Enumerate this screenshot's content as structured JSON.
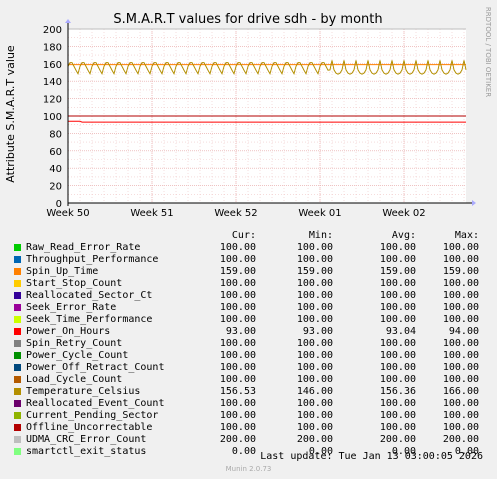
{
  "title": "S.M.A.R.T values for drive sdh - by month",
  "side_label": "RRDTOOL / TOBI OETIKER",
  "footer_version": "Munin 2.0.73",
  "last_update": "Last update: Tue Jan 13 03:00:05 2026",
  "headers": {
    "cur": "Cur:",
    "min": "Min:",
    "avg": "Avg:",
    "max": "Max:"
  },
  "chart_data": {
    "type": "line",
    "title": "S.M.A.R.T values for drive sdh - by month",
    "xlabel": "",
    "ylabel": "Attribute S.M.A.R.T value",
    "ylim": [
      0,
      200
    ],
    "yticks": [
      0,
      20,
      40,
      60,
      80,
      100,
      120,
      140,
      160,
      180,
      200
    ],
    "xticks": [
      "Week 50",
      "Week 51",
      "Week 52",
      "Week 01",
      "Week 02"
    ],
    "grid": true,
    "series": [
      {
        "name": "Raw_Read_Error_Rate",
        "color": "#00cc00",
        "cur": "100.00",
        "min": "100.00",
        "avg": "100.00",
        "max": "100.00"
      },
      {
        "name": "Throughput_Performance",
        "color": "#0066b3",
        "cur": "100.00",
        "min": "100.00",
        "avg": "100.00",
        "max": "100.00"
      },
      {
        "name": "Spin_Up_Time",
        "color": "#ff8000",
        "cur": "159.00",
        "min": "159.00",
        "avg": "159.00",
        "max": "159.00"
      },
      {
        "name": "Start_Stop_Count",
        "color": "#ffcc00",
        "cur": "100.00",
        "min": "100.00",
        "avg": "100.00",
        "max": "100.00"
      },
      {
        "name": "Reallocated_Sector_Ct",
        "color": "#330099",
        "cur": "100.00",
        "min": "100.00",
        "avg": "100.00",
        "max": "100.00"
      },
      {
        "name": "Seek_Error_Rate",
        "color": "#990099",
        "cur": "100.00",
        "min": "100.00",
        "avg": "100.00",
        "max": "100.00"
      },
      {
        "name": "Seek_Time_Performance",
        "color": "#ccff00",
        "cur": "100.00",
        "min": "100.00",
        "avg": "100.00",
        "max": "100.00"
      },
      {
        "name": "Power_On_Hours",
        "color": "#ff0000",
        "cur": "93.00",
        "min": "93.00",
        "avg": "93.04",
        "max": "94.00"
      },
      {
        "name": "Spin_Retry_Count",
        "color": "#808080",
        "cur": "100.00",
        "min": "100.00",
        "avg": "100.00",
        "max": "100.00"
      },
      {
        "name": "Power_Cycle_Count",
        "color": "#008f00",
        "cur": "100.00",
        "min": "100.00",
        "avg": "100.00",
        "max": "100.00"
      },
      {
        "name": "Power_Off_Retract_Count",
        "color": "#00487d",
        "cur": "100.00",
        "min": "100.00",
        "avg": "100.00",
        "max": "100.00"
      },
      {
        "name": "Load_Cycle_Count",
        "color": "#b35a00",
        "cur": "100.00",
        "min": "100.00",
        "avg": "100.00",
        "max": "100.00"
      },
      {
        "name": "Temperature_Celsius",
        "color": "#b38f00",
        "cur": "156.53",
        "min": "146.00",
        "avg": "156.36",
        "max": "166.00"
      },
      {
        "name": "Reallocated_Event_Count",
        "color": "#6b006b",
        "cur": "100.00",
        "min": "100.00",
        "avg": "100.00",
        "max": "100.00"
      },
      {
        "name": "Current_Pending_Sector",
        "color": "#8fb300",
        "cur": "100.00",
        "min": "100.00",
        "avg": "100.00",
        "max": "100.00"
      },
      {
        "name": "Offline_Uncorrectable",
        "color": "#b30000",
        "cur": "100.00",
        "min": "100.00",
        "avg": "100.00",
        "max": "100.00"
      },
      {
        "name": "UDMA_CRC_Error_Count",
        "color": "#bebebe",
        "cur": "200.00",
        "min": "200.00",
        "avg": "200.00",
        "max": "200.00"
      },
      {
        "name": "smartctl_exit_status",
        "color": "#80ff80",
        "cur": "0.00",
        "min": "0.00",
        "avg": "0.00",
        "max": "0.00"
      }
    ]
  }
}
